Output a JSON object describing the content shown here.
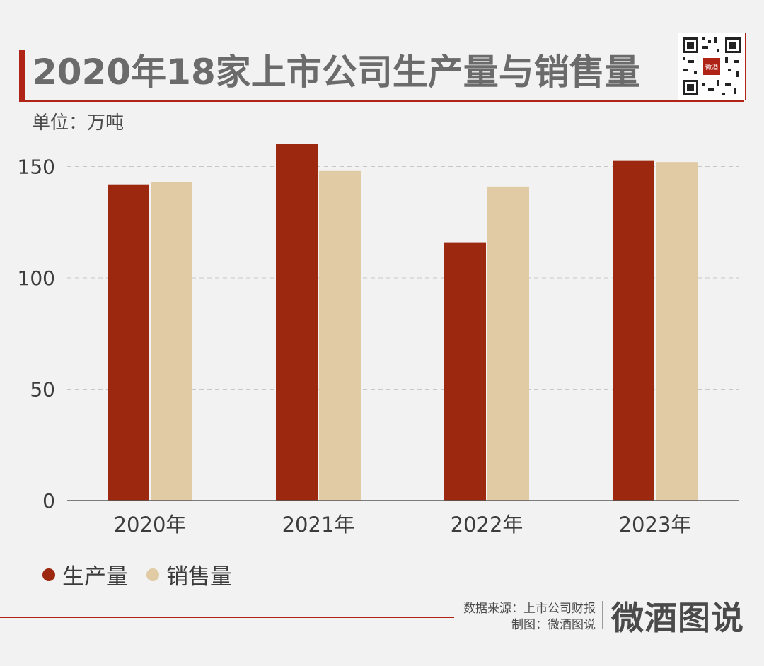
{
  "title": "2020年18家上市公司生产量与销售量",
  "unit_label": "单位：万吨",
  "source_label": "数据来源：上市公司财报",
  "made_by_label": "制图：微酒图说",
  "brand_name": "微酒图说",
  "qr_badge_text": "微酒",
  "colors": {
    "accent": "#b02418",
    "production": "#9c2810",
    "sales": "#e0cba5",
    "title_text": "#6b6b6b",
    "gridline": "#c8c8c8"
  },
  "legend": [
    {
      "label": "生产量",
      "color": "#9c2810"
    },
    {
      "label": "销售量",
      "color": "#e0cba5"
    }
  ],
  "chart_data": {
    "type": "bar",
    "title": "2020年18家上市公司生产量与销售量",
    "xlabel": "",
    "ylabel": "单位：万吨",
    "categories": [
      "2020年",
      "2021年",
      "2022年",
      "2023年"
    ],
    "series": [
      {
        "name": "生产量",
        "values": [
          142,
          160,
          116,
          152.5
        ]
      },
      {
        "name": "销售量",
        "values": [
          143,
          148,
          141,
          152
        ]
      }
    ],
    "ylim": [
      0,
      160
    ],
    "yticks": [
      0,
      50,
      100,
      150
    ],
    "grid": true,
    "grid_style": "dashed-horizontal",
    "legend_position": "bottom-left"
  }
}
